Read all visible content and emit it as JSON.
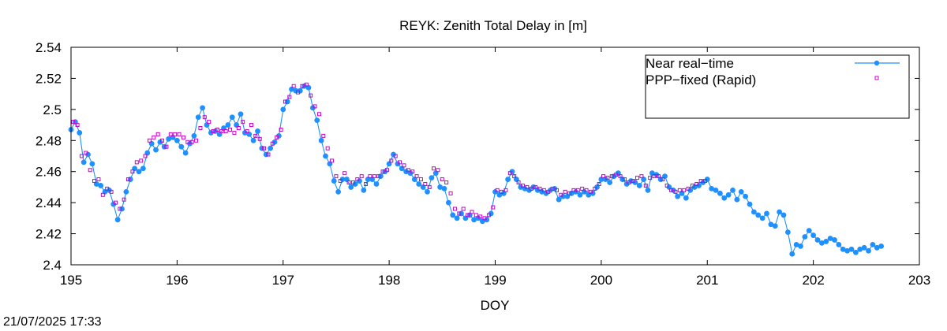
{
  "timestamp": "21/07/2025 17:33",
  "chart_data": {
    "type": "line",
    "title": "REYK: Zenith Total Delay in [m]",
    "xlabel": "DOY",
    "ylabel": "",
    "xlim": [
      195,
      203
    ],
    "ylim": [
      2.4,
      2.54
    ],
    "xticks": [
      "195",
      "196",
      "197",
      "198",
      "199",
      "200",
      "201",
      "202",
      "203"
    ],
    "yticks": [
      "2.4",
      "2.42",
      "2.44",
      "2.46",
      "2.48",
      "2.5",
      "2.52",
      "2.54"
    ],
    "grid": false,
    "legend_position": "top-right",
    "series": [
      {
        "name": "Near real−time",
        "color": "#1e90ff",
        "style": "line-with-points",
        "x": [
          195.0,
          195.04,
          195.08,
          195.12,
          195.16,
          195.2,
          195.24,
          195.28,
          195.32,
          195.36,
          195.4,
          195.44,
          195.48,
          195.52,
          195.56,
          195.6,
          195.64,
          195.68,
          195.72,
          195.76,
          195.8,
          195.84,
          195.88,
          195.92,
          195.96,
          196.0,
          196.04,
          196.08,
          196.12,
          196.16,
          196.2,
          196.24,
          196.28,
          196.32,
          196.36,
          196.4,
          196.44,
          196.48,
          196.52,
          196.56,
          196.6,
          196.64,
          196.68,
          196.72,
          196.76,
          196.8,
          196.84,
          196.88,
          196.92,
          196.96,
          197.0,
          197.04,
          197.08,
          197.12,
          197.16,
          197.2,
          197.24,
          197.28,
          197.32,
          197.36,
          197.4,
          197.44,
          197.48,
          197.52,
          197.56,
          197.6,
          197.64,
          197.68,
          197.72,
          197.76,
          197.8,
          197.84,
          197.88,
          197.92,
          197.96,
          198.0,
          198.04,
          198.08,
          198.12,
          198.16,
          198.2,
          198.24,
          198.28,
          198.32,
          198.36,
          198.4,
          198.44,
          198.48,
          198.52,
          198.56,
          198.6,
          198.64,
          198.68,
          198.72,
          198.76,
          198.8,
          198.84,
          198.88,
          198.92,
          198.96,
          199.0,
          199.04,
          199.08,
          199.12,
          199.16,
          199.2,
          199.24,
          199.28,
          199.32,
          199.36,
          199.4,
          199.44,
          199.48,
          199.52,
          199.56,
          199.6,
          199.64,
          199.68,
          199.72,
          199.76,
          199.8,
          199.84,
          199.88,
          199.92,
          199.96,
          200.0,
          200.04,
          200.08,
          200.12,
          200.16,
          200.2,
          200.24,
          200.28,
          200.32,
          200.36,
          200.4,
          200.44,
          200.48,
          200.52,
          200.56,
          200.6,
          200.64,
          200.68,
          200.72,
          200.76,
          200.8,
          200.84,
          200.88,
          200.92,
          200.96,
          201.0,
          201.04,
          201.08,
          201.12,
          201.16,
          201.2,
          201.24,
          201.28,
          201.32,
          201.36,
          201.4,
          201.44,
          201.48,
          201.52,
          201.56,
          201.6,
          201.64,
          201.68,
          201.72,
          201.76,
          201.8,
          201.84,
          201.88,
          201.92,
          201.96,
          202.0,
          202.04,
          202.08,
          202.12,
          202.16,
          202.2,
          202.24,
          202.28,
          202.32,
          202.36,
          202.4,
          202.44,
          202.48,
          202.52,
          202.56,
          202.6,
          202.64
        ],
        "y": [
          2.487,
          2.492,
          2.485,
          2.466,
          2.471,
          2.465,
          2.452,
          2.451,
          2.447,
          2.448,
          2.439,
          2.429,
          2.436,
          2.447,
          2.455,
          2.462,
          2.46,
          2.462,
          2.472,
          2.478,
          2.474,
          2.479,
          2.476,
          2.481,
          2.482,
          2.48,
          2.476,
          2.472,
          2.478,
          2.483,
          2.495,
          2.501,
          2.49,
          2.485,
          2.486,
          2.484,
          2.488,
          2.49,
          2.495,
          2.49,
          2.497,
          2.485,
          2.484,
          2.48,
          2.486,
          2.475,
          2.471,
          2.475,
          2.479,
          2.483,
          2.5,
          2.505,
          2.513,
          2.512,
          2.512,
          2.515,
          2.514,
          2.501,
          2.493,
          2.48,
          2.47,
          2.465,
          2.454,
          2.447,
          2.455,
          2.455,
          2.45,
          2.452,
          2.454,
          2.448,
          2.455,
          2.455,
          2.452,
          2.457,
          2.46,
          2.465,
          2.471,
          2.465,
          2.462,
          2.46,
          2.459,
          2.455,
          2.452,
          2.45,
          2.447,
          2.456,
          2.459,
          2.45,
          2.449,
          2.44,
          2.432,
          2.43,
          2.433,
          2.43,
          2.432,
          2.429,
          2.43,
          2.428,
          2.429,
          2.433,
          2.447,
          2.445,
          2.446,
          2.455,
          2.46,
          2.455,
          2.45,
          2.449,
          2.448,
          2.45,
          2.448,
          2.447,
          2.446,
          2.448,
          2.449,
          2.442,
          2.444,
          2.444,
          2.446,
          2.447,
          2.445,
          2.447,
          2.445,
          2.446,
          2.45,
          2.455,
          2.455,
          2.453,
          2.457,
          2.459,
          2.455,
          2.452,
          2.454,
          2.453,
          2.451,
          2.455,
          2.448,
          2.459,
          2.458,
          2.455,
          2.457,
          2.45,
          2.448,
          2.444,
          2.446,
          2.443,
          2.448,
          2.45,
          2.451,
          2.453,
          2.455,
          2.449,
          2.448,
          2.446,
          2.443,
          2.445,
          2.448,
          2.442,
          2.447,
          2.444,
          2.439,
          2.434,
          2.432,
          2.43,
          2.433,
          2.426,
          2.425,
          2.434,
          2.432,
          2.421,
          2.407,
          2.413,
          2.412,
          2.418,
          2.422,
          2.419,
          2.416,
          2.414,
          2.415,
          2.417,
          2.416,
          2.413,
          2.41,
          2.409,
          2.41,
          2.408,
          2.41,
          2.411,
          2.409,
          2.413,
          2.411,
          2.412
        ]
      },
      {
        "name": "PPP−fixed (Rapid)",
        "color": "#cc00cc",
        "style": "open-squares",
        "x": [
          195.02,
          195.06,
          195.1,
          195.14,
          195.18,
          195.22,
          195.26,
          195.3,
          195.34,
          195.38,
          195.42,
          195.46,
          195.5,
          195.54,
          195.58,
          195.62,
          195.66,
          195.7,
          195.74,
          195.78,
          195.82,
          195.86,
          195.9,
          195.94,
          195.98,
          196.02,
          196.06,
          196.1,
          196.14,
          196.18,
          196.22,
          196.26,
          196.3,
          196.34,
          196.38,
          196.42,
          196.46,
          196.5,
          196.54,
          196.58,
          196.62,
          196.66,
          196.7,
          196.74,
          196.78,
          196.82,
          196.86,
          196.9,
          196.94,
          196.98,
          197.02,
          197.06,
          197.1,
          197.14,
          197.18,
          197.22,
          197.26,
          197.3,
          197.34,
          197.38,
          197.42,
          197.46,
          197.5,
          197.54,
          197.58,
          197.62,
          197.66,
          197.7,
          197.74,
          197.78,
          197.82,
          197.86,
          197.9,
          197.94,
          197.98,
          198.02,
          198.06,
          198.1,
          198.14,
          198.18,
          198.22,
          198.26,
          198.3,
          198.34,
          198.38,
          198.42,
          198.46,
          198.5,
          198.54,
          198.58,
          198.62,
          198.66,
          198.7,
          198.74,
          198.78,
          198.82,
          198.86,
          198.9,
          198.94,
          198.98,
          199.02,
          199.06,
          199.1,
          199.14,
          199.18,
          199.22,
          199.26,
          199.3,
          199.34,
          199.38,
          199.42,
          199.46,
          199.5,
          199.54,
          199.58,
          199.62,
          199.66,
          199.7,
          199.74,
          199.78,
          199.82,
          199.86,
          199.9,
          199.94,
          199.98,
          200.02,
          200.06,
          200.1,
          200.14,
          200.18,
          200.22,
          200.26,
          200.3,
          200.34,
          200.38,
          200.42,
          200.46,
          200.5,
          200.54,
          200.58,
          200.62,
          200.66,
          200.7,
          200.74,
          200.78,
          200.82,
          200.86,
          200.9,
          200.94,
          200.98
        ],
        "y": [
          2.492,
          2.49,
          2.47,
          2.472,
          2.461,
          2.454,
          2.455,
          2.445,
          2.449,
          2.447,
          2.44,
          2.436,
          2.442,
          2.455,
          2.46,
          2.466,
          2.467,
          2.47,
          2.48,
          2.482,
          2.484,
          2.48,
          2.476,
          2.484,
          2.484,
          2.484,
          2.482,
          2.479,
          2.479,
          2.48,
          2.488,
          2.495,
          2.492,
          2.486,
          2.487,
          2.486,
          2.486,
          2.487,
          2.485,
          2.488,
          2.492,
          2.486,
          2.49,
          2.483,
          2.481,
          2.475,
          2.471,
          2.478,
          2.482,
          2.487,
          2.505,
          2.508,
          2.515,
          2.511,
          2.515,
          2.516,
          2.509,
          2.502,
          2.497,
          2.483,
          2.475,
          2.467,
          2.457,
          2.454,
          2.459,
          2.453,
          2.453,
          2.455,
          2.457,
          2.452,
          2.457,
          2.457,
          2.457,
          2.46,
          2.461,
          2.467,
          2.47,
          2.466,
          2.464,
          2.461,
          2.46,
          2.457,
          2.455,
          2.452,
          2.45,
          2.462,
          2.461,
          2.455,
          2.453,
          2.446,
          2.436,
          2.433,
          2.436,
          2.432,
          2.434,
          2.432,
          2.431,
          2.43,
          2.432,
          2.437,
          2.448,
          2.447,
          2.448,
          2.459,
          2.457,
          2.453,
          2.451,
          2.45,
          2.449,
          2.45,
          2.449,
          2.448,
          2.447,
          2.449,
          2.448,
          2.445,
          2.447,
          2.446,
          2.448,
          2.448,
          2.449,
          2.448,
          2.447,
          2.449,
          2.452,
          2.457,
          2.456,
          2.457,
          2.458,
          2.457,
          2.455,
          2.453,
          2.454,
          2.456,
          2.457,
          2.451,
          2.456,
          2.457,
          2.457,
          2.455,
          2.451,
          2.448,
          2.447,
          2.448,
          2.448,
          2.449,
          2.451,
          2.452,
          2.454,
          2.454
        ]
      }
    ]
  }
}
